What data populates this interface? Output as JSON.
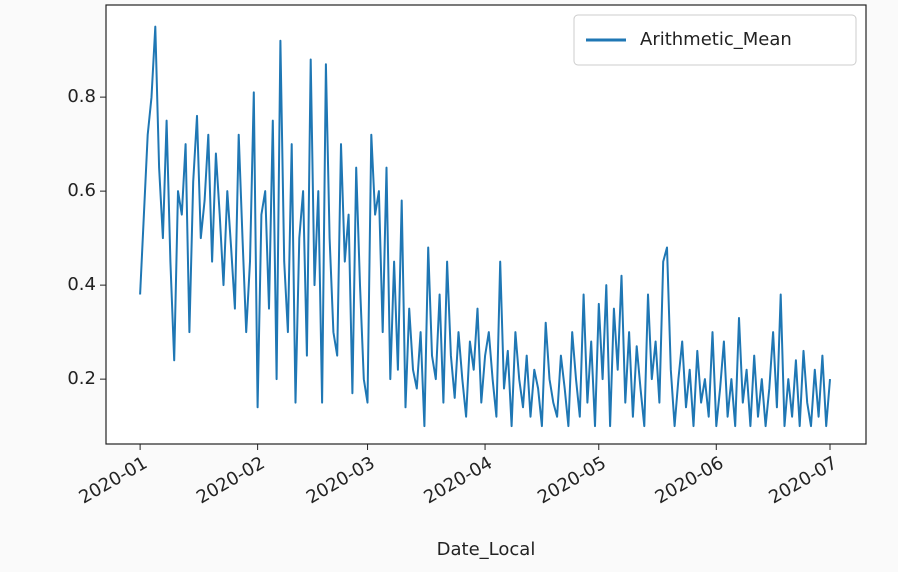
{
  "chart_data": {
    "type": "line",
    "x_label": "Date_Local",
    "x": [
      0,
      1,
      2,
      3,
      4,
      5,
      6,
      7,
      8,
      9,
      10,
      11,
      12,
      13,
      14,
      15,
      16,
      17,
      18,
      19,
      20,
      21,
      22,
      23,
      24,
      25,
      26,
      27,
      28,
      29,
      30,
      31,
      32,
      33,
      34,
      35,
      36,
      37,
      38,
      39,
      40,
      41,
      42,
      43,
      44,
      45,
      46,
      47,
      48,
      49,
      50,
      51,
      52,
      53,
      54,
      55,
      56,
      57,
      58,
      59,
      60,
      61,
      62,
      63,
      64,
      65,
      66,
      67,
      68,
      69,
      70,
      71,
      72,
      73,
      74,
      75,
      76,
      77,
      78,
      79,
      80,
      81,
      82,
      83,
      84,
      85,
      86,
      87,
      88,
      89,
      90,
      91,
      92,
      93,
      94,
      95,
      96,
      97,
      98,
      99,
      100,
      101,
      102,
      103,
      104,
      105,
      106,
      107,
      108,
      109,
      110,
      111,
      112,
      113,
      114,
      115,
      116,
      117,
      118,
      119,
      120,
      121,
      122,
      123,
      124,
      125,
      126,
      127,
      128,
      129,
      130,
      131,
      132,
      133,
      134,
      135,
      136,
      137,
      138,
      139,
      140,
      141,
      142,
      143,
      144,
      145,
      146,
      147,
      148,
      149,
      150,
      151,
      152,
      153,
      154,
      155,
      156,
      157,
      158,
      159,
      160,
      161,
      162,
      163,
      164,
      165,
      166,
      167,
      168,
      169,
      170,
      171,
      172,
      173,
      174,
      175,
      176,
      177,
      178,
      179,
      180,
      181,
      182
    ],
    "series": [
      {
        "name": "Arithmetic_Mean",
        "color": "#1f77b4",
        "values": [
          0.38,
          0.55,
          0.72,
          0.8,
          0.95,
          0.65,
          0.5,
          0.75,
          0.45,
          0.24,
          0.6,
          0.55,
          0.7,
          0.3,
          0.62,
          0.76,
          0.5,
          0.58,
          0.72,
          0.45,
          0.68,
          0.55,
          0.4,
          0.6,
          0.48,
          0.35,
          0.72,
          0.5,
          0.3,
          0.45,
          0.81,
          0.14,
          0.55,
          0.6,
          0.35,
          0.75,
          0.2,
          0.92,
          0.45,
          0.3,
          0.7,
          0.15,
          0.5,
          0.6,
          0.25,
          0.88,
          0.4,
          0.6,
          0.15,
          0.87,
          0.5,
          0.3,
          0.25,
          0.7,
          0.45,
          0.55,
          0.17,
          0.65,
          0.4,
          0.2,
          0.15,
          0.72,
          0.55,
          0.6,
          0.3,
          0.65,
          0.2,
          0.45,
          0.22,
          0.58,
          0.14,
          0.35,
          0.22,
          0.18,
          0.3,
          0.1,
          0.48,
          0.25,
          0.2,
          0.38,
          0.15,
          0.45,
          0.25,
          0.16,
          0.3,
          0.2,
          0.12,
          0.28,
          0.22,
          0.35,
          0.15,
          0.25,
          0.3,
          0.2,
          0.12,
          0.45,
          0.18,
          0.26,
          0.1,
          0.3,
          0.2,
          0.14,
          0.25,
          0.12,
          0.22,
          0.18,
          0.1,
          0.32,
          0.2,
          0.15,
          0.12,
          0.25,
          0.18,
          0.1,
          0.3,
          0.2,
          0.12,
          0.38,
          0.15,
          0.28,
          0.1,
          0.36,
          0.2,
          0.4,
          0.1,
          0.35,
          0.22,
          0.42,
          0.15,
          0.3,
          0.12,
          0.27,
          0.18,
          0.1,
          0.38,
          0.2,
          0.28,
          0.15,
          0.45,
          0.48,
          0.22,
          0.1,
          0.2,
          0.28,
          0.14,
          0.22,
          0.1,
          0.26,
          0.15,
          0.2,
          0.12,
          0.3,
          0.1,
          0.18,
          0.28,
          0.12,
          0.2,
          0.1,
          0.33,
          0.15,
          0.22,
          0.1,
          0.25,
          0.12,
          0.2,
          0.1,
          0.18,
          0.3,
          0.14,
          0.38,
          0.1,
          0.2,
          0.12,
          0.24,
          0.1,
          0.26,
          0.15,
          0.1,
          0.22,
          0.12,
          0.25,
          0.1,
          0.2
        ]
      }
    ],
    "xlim": [
      -9,
      191.5
    ],
    "xticks": [
      {
        "value": 0,
        "label": "2020-01"
      },
      {
        "value": 31,
        "label": "2020-02"
      },
      {
        "value": 60,
        "label": "2020-03"
      },
      {
        "value": 91,
        "label": "2020-04"
      },
      {
        "value": 121,
        "label": "2020-05"
      },
      {
        "value": 152,
        "label": "2020-06"
      },
      {
        "value": 182,
        "label": "2020-07"
      }
    ],
    "ylim": [
      0.062,
      0.996
    ],
    "yticks": [
      0.2,
      0.4,
      0.6,
      0.8
    ],
    "legend": "upper right"
  }
}
